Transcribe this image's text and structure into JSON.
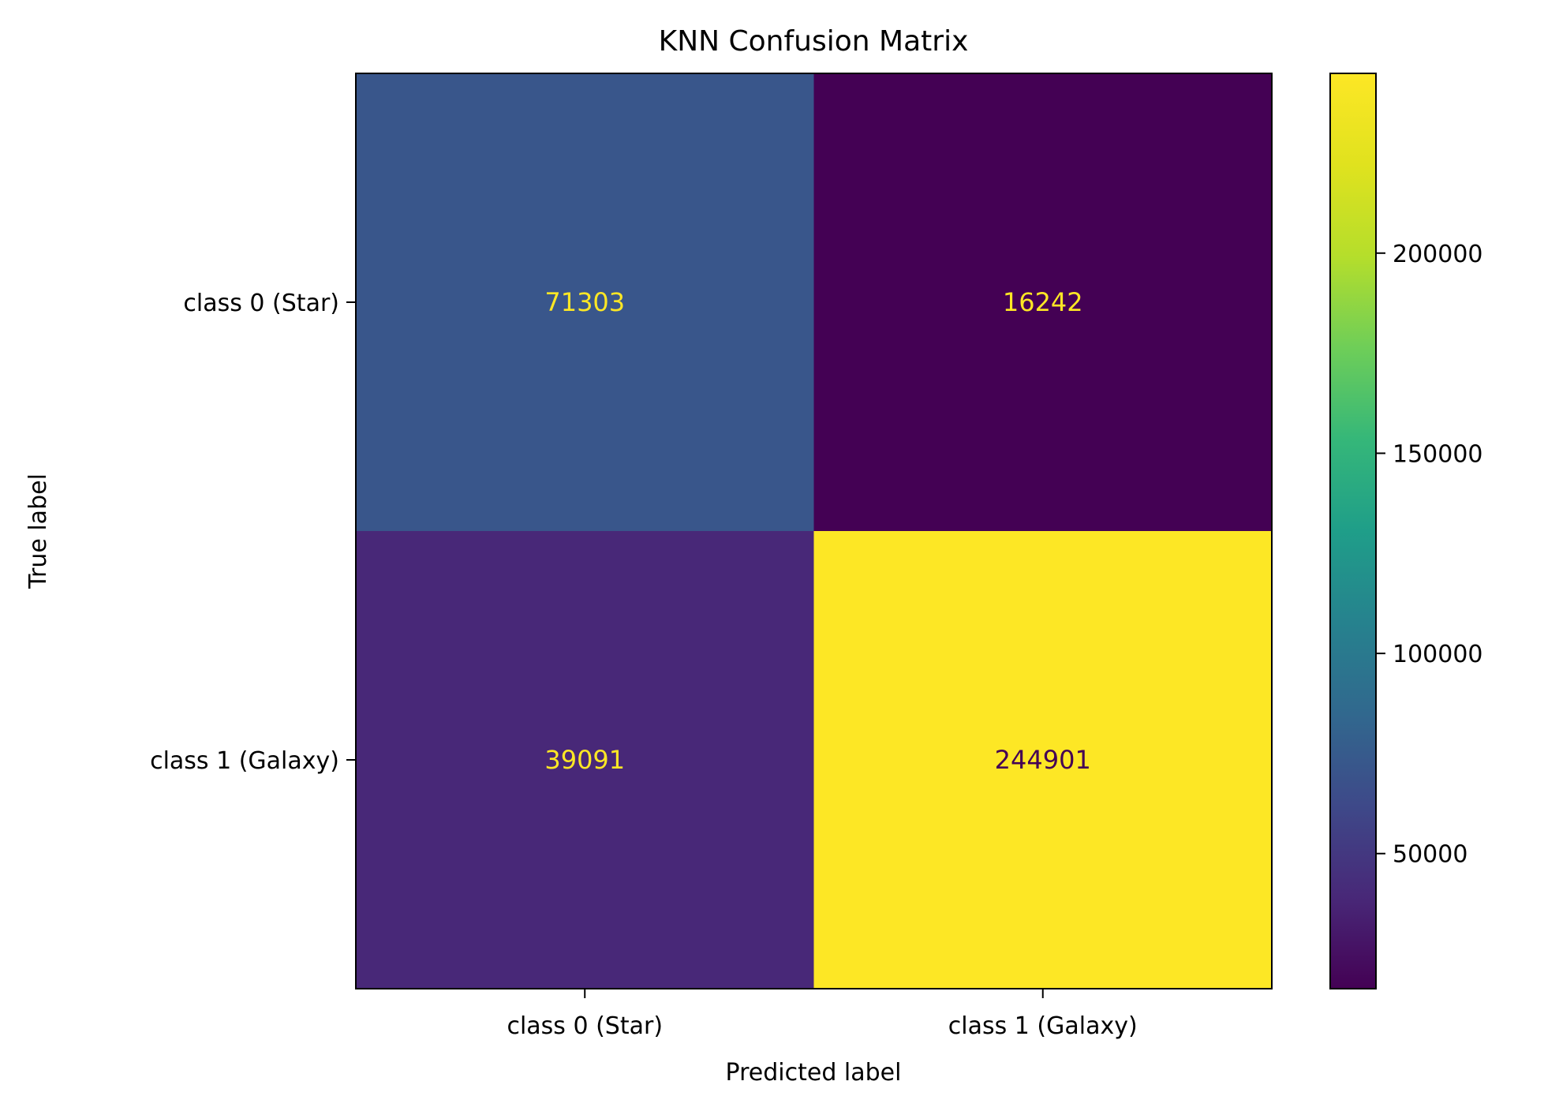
{
  "chart_data": {
    "type": "heatmap",
    "title": "KNN Confusion Matrix",
    "xlabel": "Predicted label",
    "ylabel": "True label",
    "x_categories": [
      "class 0 (Star)",
      "class 1 (Galaxy)"
    ],
    "y_categories": [
      "class 0 (Star)",
      "class 1 (Galaxy)"
    ],
    "values": [
      [
        71303,
        16242
      ],
      [
        39091,
        244901
      ]
    ],
    "colormap": "viridis",
    "colorbar": {
      "vmin": 16242,
      "vmax": 244901,
      "ticks": [
        50000,
        100000,
        150000,
        200000
      ],
      "tick_labels": [
        "50000",
        "100000",
        "150000",
        "200000"
      ]
    },
    "grid": false,
    "legend": "none",
    "text_colors": {
      "on_dark": "#fde725",
      "on_light": "#440154"
    }
  }
}
